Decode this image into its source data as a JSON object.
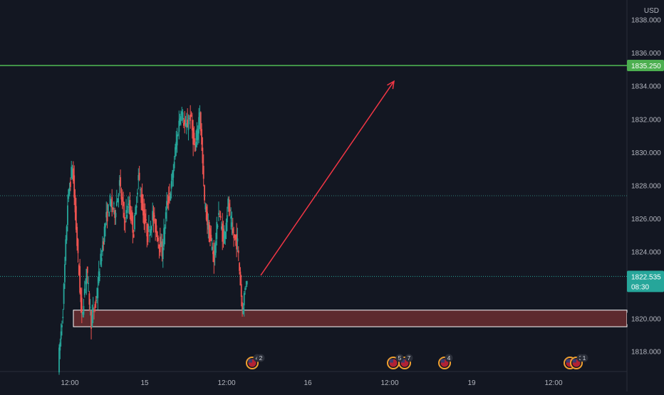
{
  "chart_data": {
    "type": "candlestick",
    "currency": "USD",
    "y_range": [
      1816.8,
      1839.2
    ],
    "y_ticks": [
      "1838.000",
      "1836.000",
      "1834.000",
      "1832.000",
      "1830.000",
      "1828.000",
      "1826.000",
      "1824.000",
      "1822.000",
      "1820.000",
      "1818.000"
    ],
    "x_ticks": [
      "12:00",
      "15",
      "12:00",
      "16",
      "12:00",
      "19",
      "12:00"
    ],
    "target_line": {
      "price": 1835.25,
      "label": "1835.250",
      "color": "#4caf50"
    },
    "current_price": {
      "price": 1822.535,
      "label": "1822.535",
      "countdown": "08:30",
      "color": "#26a69a"
    },
    "dotted_level": {
      "price": 1827.4
    },
    "demand_zone": {
      "top": 1820.5,
      "bottom": 1819.5,
      "fill": "#5d2a2e",
      "border": "#ffffff"
    },
    "projection_arrow": {
      "from": 1822.6,
      "to": 1834.3,
      "color": "#f23645"
    },
    "event_badges": [
      "4",
      "2",
      "5",
      "7",
      "4",
      "3",
      "1"
    ],
    "colors": {
      "up": "#26a69a",
      "down": "#ef5350",
      "background": "#131722"
    },
    "series_shape": [
      [
        1817.2,
        1820.5
      ],
      [
        1820.5,
        1827.0
      ],
      [
        1827.0,
        1829.2
      ],
      [
        1829.2,
        1824.5
      ],
      [
        1824.5,
        1820.0
      ],
      [
        1820.0,
        1823.0
      ],
      [
        1823.0,
        1819.8
      ],
      [
        1819.8,
        1821.0
      ],
      [
        1821.0,
        1823.5
      ],
      [
        1823.5,
        1825.8
      ],
      [
        1825.8,
        1827.0
      ],
      [
        1827.0,
        1826.4
      ],
      [
        1826.4,
        1828.1
      ],
      [
        1828.1,
        1826.0
      ],
      [
        1826.0,
        1826.8
      ],
      [
        1826.8,
        1825.2
      ],
      [
        1825.2,
        1828.6
      ],
      [
        1828.6,
        1826.3
      ],
      [
        1826.3,
        1825.0
      ],
      [
        1825.0,
        1826.2
      ],
      [
        1826.2,
        1825.0
      ],
      [
        1825.0,
        1824.0
      ],
      [
        1824.0,
        1826.8
      ],
      [
        1826.8,
        1828.0
      ],
      [
        1828.0,
        1830.6
      ],
      [
        1830.6,
        1832.6
      ],
      [
        1832.6,
        1831.4
      ],
      [
        1831.4,
        1832.2
      ],
      [
        1832.2,
        1830.0
      ],
      [
        1830.0,
        1832.6
      ],
      [
        1832.6,
        1827.0
      ],
      [
        1827.0,
        1825.0
      ],
      [
        1825.0,
        1823.7
      ],
      [
        1823.7,
        1826.5
      ],
      [
        1826.5,
        1824.7
      ],
      [
        1824.7,
        1826.9
      ],
      [
        1826.9,
        1825.0
      ],
      [
        1825.0,
        1824.5
      ],
      [
        1824.5,
        1820.6
      ],
      [
        1820.6,
        1822.535
      ]
    ]
  }
}
